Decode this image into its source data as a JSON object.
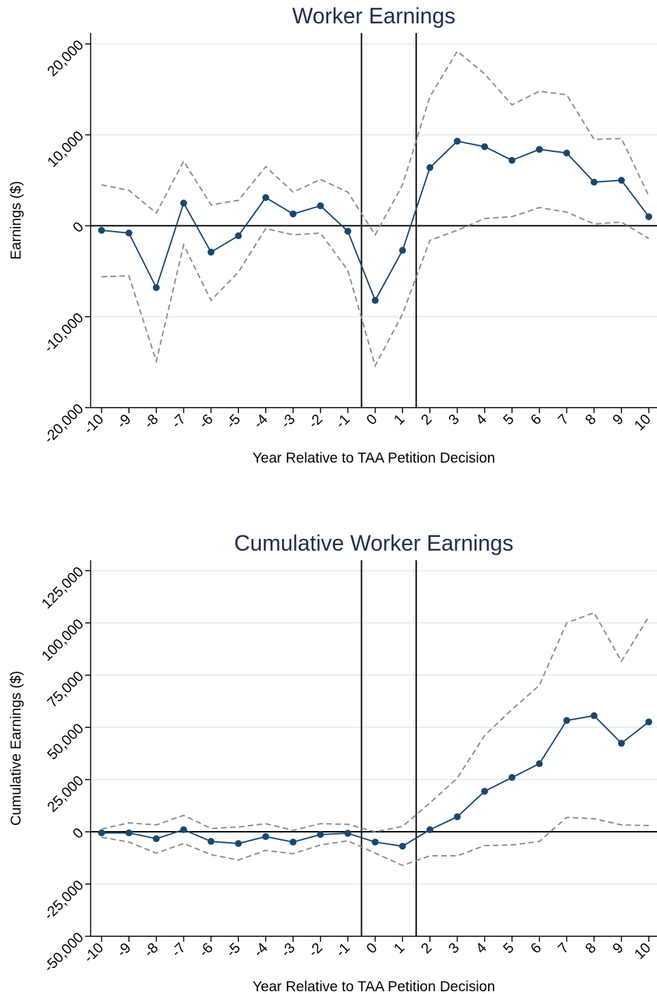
{
  "chart_data": [
    {
      "type": "line",
      "title": "Worker Earnings",
      "xlabel": "Year Relative to TAA Petition Decision",
      "ylabel": "Earnings ($)",
      "x": [
        -10,
        -9,
        -8,
        -7,
        -6,
        -5,
        -4,
        -3,
        -2,
        -1,
        0,
        1,
        2,
        3,
        4,
        5,
        6,
        7,
        8,
        9,
        10
      ],
      "xlim": [
        -10.4,
        10.3
      ],
      "xticks": [
        -10,
        -9,
        -8,
        -7,
        -6,
        -5,
        -4,
        -3,
        -2,
        -1,
        0,
        1,
        2,
        3,
        4,
        5,
        6,
        7,
        8,
        9,
        10
      ],
      "ylim": [
        -20000,
        21200
      ],
      "yticks": [
        {
          "value": -20000,
          "label": "-20,000"
        },
        {
          "value": -10000,
          "label": "-10,000"
        },
        0,
        {
          "value": 10000,
          "label": "10,000"
        },
        {
          "value": 20000,
          "label": "20,000"
        }
      ],
      "grid": true,
      "vlines": [
        -0.5,
        1.5
      ],
      "hlines": [
        0
      ],
      "series": [
        {
          "color": "#8a8a8a",
          "dashed": true,
          "values": [
            4500,
            3900,
            1400,
            7100,
            2300,
            2800,
            6500,
            3700,
            5100,
            3700,
            -1000,
            4500,
            14200,
            19200,
            16700,
            13300,
            14800,
            14400,
            9500,
            9600,
            3300
          ]
        },
        {
          "color": "#8a8a8a",
          "dashed": true,
          "values": [
            -5600,
            -5500,
            -14900,
            -2100,
            -8200,
            -5100,
            -300,
            -1000,
            -800,
            -4900,
            -15400,
            -9700,
            -1600,
            -500,
            800,
            1000,
            2000,
            1500,
            200,
            400,
            -1400
          ]
        },
        {
          "color": "#1a476f",
          "markers": true,
          "values": [
            -500,
            -800,
            -6800,
            2500,
            -2900,
            -1100,
            3100,
            1300,
            2200,
            -600,
            -8200,
            -2700,
            6400,
            9300,
            8700,
            7200,
            8400,
            8000,
            4800,
            5000,
            1000
          ]
        }
      ]
    },
    {
      "type": "line",
      "title": "Cumulative Worker Earnings",
      "xlabel": "Year Relative to TAA Petition Decision",
      "ylabel": "Cumulative Earnings ($)",
      "x": [
        -10,
        -9,
        -8,
        -7,
        -6,
        -5,
        -4,
        -3,
        -2,
        -1,
        0,
        1,
        2,
        3,
        4,
        5,
        6,
        7,
        8,
        9,
        10
      ],
      "xlim": [
        -10.4,
        10.3
      ],
      "xticks": [
        -10,
        -9,
        -8,
        -7,
        -6,
        -5,
        -4,
        -3,
        -2,
        -1,
        0,
        1,
        2,
        3,
        4,
        5,
        6,
        7,
        8,
        9,
        10
      ],
      "ylim": [
        -50000,
        130000
      ],
      "yticks": [
        {
          "value": -50000,
          "label": "-50,000"
        },
        {
          "value": -25000,
          "label": "-25,000"
        },
        0,
        {
          "value": 25000,
          "label": "25,000"
        },
        {
          "value": 50000,
          "label": "50,000"
        },
        {
          "value": 75000,
          "label": "75,000"
        },
        {
          "value": 100000,
          "label": "100,000"
        },
        {
          "value": 125000,
          "label": "125,000"
        }
      ],
      "grid": true,
      "vlines": [
        -0.5,
        1.5
      ],
      "hlines": [
        0
      ],
      "series": [
        {
          "color": "#8a8a8a",
          "dashed": true,
          "values": [
            1300,
            4300,
            3300,
            7900,
            1600,
            2300,
            3900,
            700,
            3900,
            3600,
            0,
            2600,
            13800,
            25700,
            46100,
            58600,
            70100,
            100000,
            104900,
            81600,
            103000
          ]
        },
        {
          "color": "#8a8a8a",
          "dashed": true,
          "values": [
            -2600,
            -4900,
            -10200,
            -5600,
            -10900,
            -13500,
            -8900,
            -10500,
            -6300,
            -4300,
            -10200,
            -16100,
            -11500,
            -11500,
            -6600,
            -6300,
            -4600,
            6900,
            6300,
            3300,
            3000
          ]
        },
        {
          "color": "#1a476f",
          "markers": true,
          "values": [
            -500,
            -500,
            -3300,
            1000,
            -4600,
            -5600,
            -2300,
            -4900,
            -1300,
            -700,
            -4900,
            -6900,
            1000,
            7200,
            19400,
            26000,
            32600,
            53300,
            55600,
            42400,
            52600
          ]
        }
      ]
    }
  ]
}
